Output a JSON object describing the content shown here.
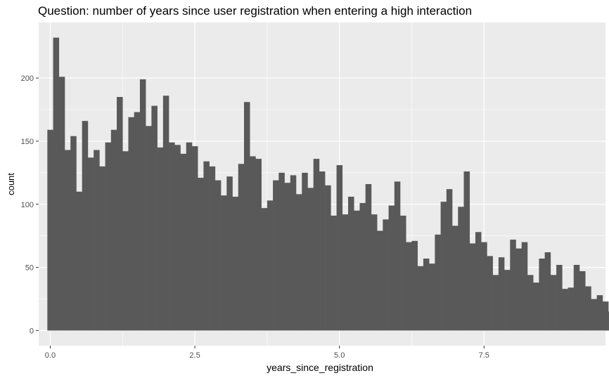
{
  "chart_data": {
    "type": "bar",
    "title": "Question: number of years since user registration when entering a high interaction",
    "xlabel": "years_since_registration",
    "ylabel": "count",
    "xlim": [
      -0.2,
      9.6
    ],
    "ylim": [
      -12,
      244
    ],
    "bin_width": 0.1,
    "x_ticks": [
      0.0,
      2.5,
      5.0,
      7.5
    ],
    "x_tick_labels": [
      "0.0",
      "2.5",
      "5.0",
      "7.5"
    ],
    "y_ticks": [
      0,
      50,
      100,
      150,
      200
    ],
    "y_tick_labels": [
      "0",
      "50",
      "100",
      "150",
      "200"
    ],
    "grid": true,
    "colors": {
      "panel": "#ebebeb",
      "grid": "#ffffff",
      "bar": "#595959"
    },
    "values": [
      159,
      232,
      201,
      143,
      154,
      110,
      166,
      137,
      143,
      130,
      149,
      159,
      185,
      142,
      169,
      173,
      199,
      162,
      178,
      145,
      186,
      149,
      147,
      140,
      149,
      146,
      121,
      134,
      130,
      119,
      107,
      122,
      106,
      132,
      181,
      138,
      136,
      97,
      103,
      119,
      125,
      117,
      123,
      108,
      125,
      113,
      136,
      126,
      115,
      91,
      131,
      92,
      106,
      95,
      101,
      116,
      92,
      79,
      88,
      99,
      118,
      91,
      70,
      71,
      51,
      57,
      53,
      76,
      102,
      112,
      83,
      98,
      126,
      69,
      78,
      70,
      59,
      44,
      58,
      48,
      72,
      65,
      70,
      44,
      38,
      57,
      62,
      44,
      52,
      33,
      34,
      52,
      47,
      35,
      25,
      28,
      23,
      15
    ]
  }
}
